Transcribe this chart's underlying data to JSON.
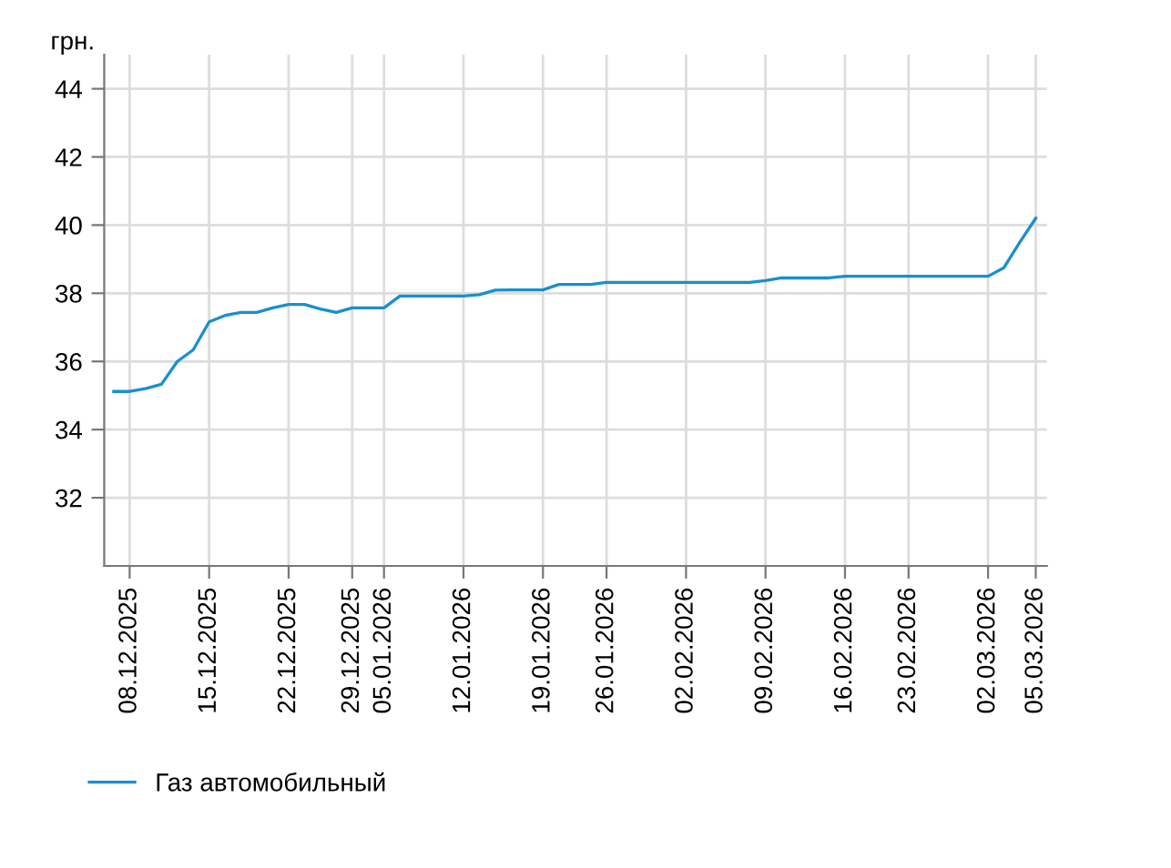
{
  "chart_data": {
    "type": "line",
    "ylabel": "грн.",
    "categories": [
      null,
      "08.12.2025",
      null,
      null,
      null,
      null,
      "15.12.2025",
      null,
      null,
      null,
      null,
      "22.12.2025",
      null,
      null,
      null,
      "29.12.2025",
      null,
      "05.01.2026",
      null,
      null,
      null,
      null,
      "12.01.2026",
      null,
      null,
      null,
      null,
      "19.01.2026",
      null,
      null,
      null,
      "26.01.2026",
      null,
      null,
      null,
      null,
      "02.02.2026",
      null,
      null,
      null,
      null,
      "09.02.2026",
      null,
      null,
      null,
      null,
      "16.02.2026",
      null,
      null,
      null,
      "23.02.2026",
      null,
      null,
      null,
      null,
      "02.03.2026",
      null,
      null,
      "05.03.2026"
    ],
    "series": [
      {
        "name": "Газ автомобильный",
        "color": "#1a8fd0",
        "values": [
          35.12,
          35.12,
          35.2,
          35.33,
          36.0,
          36.34,
          37.16,
          37.35,
          37.44,
          37.44,
          37.57,
          37.67,
          37.67,
          37.54,
          37.44,
          37.57,
          37.57,
          37.57,
          37.92,
          37.92,
          37.92,
          37.92,
          37.92,
          37.96,
          38.09,
          38.1,
          38.1,
          38.1,
          38.26,
          38.26,
          38.26,
          38.32,
          38.32,
          38.32,
          38.32,
          38.32,
          38.32,
          38.32,
          38.32,
          38.32,
          38.32,
          38.37,
          38.45,
          38.45,
          38.45,
          38.45,
          38.5,
          38.5,
          38.5,
          38.5,
          38.5,
          38.5,
          38.5,
          38.5,
          38.5,
          38.5,
          38.75,
          39.5,
          40.2
        ]
      }
    ],
    "ylim": [
      30,
      45
    ],
    "yticks": [
      32,
      34,
      36,
      38,
      40,
      42,
      44
    ],
    "grid": true,
    "legend": "bottom left",
    "marker": "none",
    "line_style": "solid"
  }
}
